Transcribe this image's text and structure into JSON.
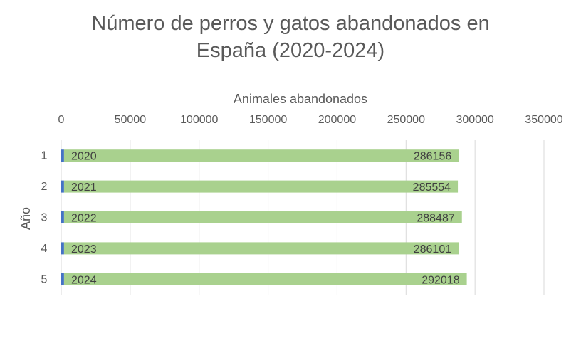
{
  "chart_data": {
    "type": "bar",
    "orientation": "horizontal",
    "title_line1": "Número de perros y gatos abandonados en",
    "title_line2": "España (2020-2024)",
    "xlabel": "Animales abandonados",
    "ylabel": "Año",
    "xlim": [
      0,
      350000
    ],
    "x_ticks": [
      "0",
      "50000",
      "100000",
      "150000",
      "200000",
      "250000",
      "300000",
      "350000"
    ],
    "x_tick_values": [
      0,
      50000,
      100000,
      150000,
      200000,
      250000,
      300000,
      350000
    ],
    "x_axis_position": "top",
    "grid": true,
    "legend": "none",
    "categories": [
      "1",
      "2",
      "3",
      "4",
      "5"
    ],
    "series": [
      {
        "values": [
          2020,
          2021,
          2022,
          2023,
          2024
        ],
        "labels": [
          "2020",
          "2021",
          "2022",
          "2023",
          "2024"
        ],
        "color": "#4472C4"
      },
      {
        "values": [
          286156,
          285554,
          288487,
          286101,
          292018
        ],
        "labels": [
          "286156",
          "285554",
          "288487",
          "286101",
          "292018"
        ],
        "color": "#A9D18E"
      }
    ],
    "stacked": true
  }
}
